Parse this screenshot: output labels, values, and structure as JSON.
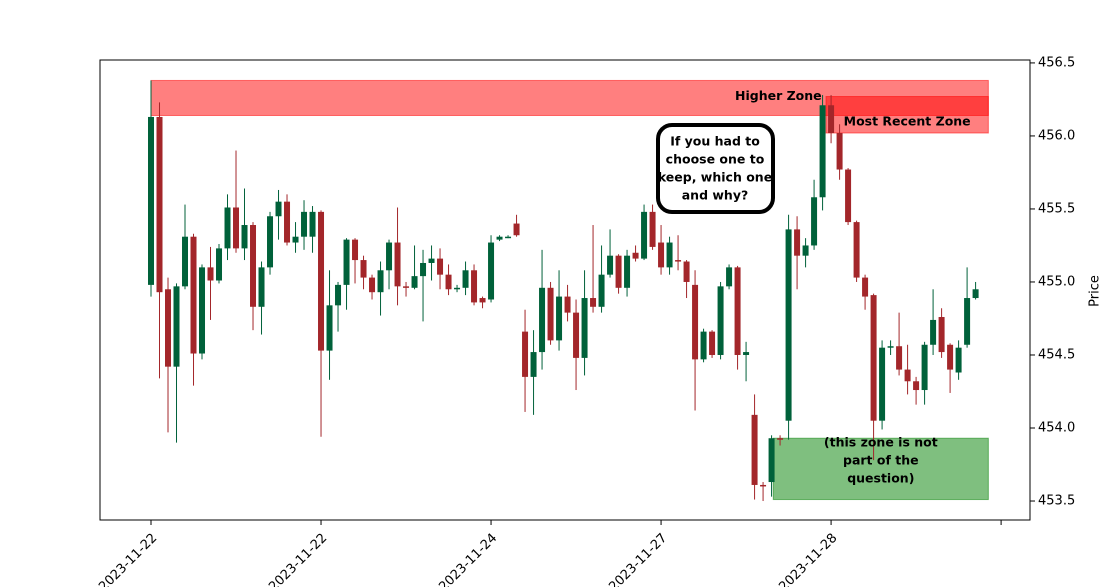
{
  "chart_data": {
    "type": "candlestick",
    "y_label": "Price",
    "xlim": [
      -6,
      103.4
    ],
    "xticks": [
      {
        "value": 0,
        "label": "2023-11-22"
      },
      {
        "value": 20,
        "label": "2023-11-22"
      },
      {
        "value": 40,
        "label": "2023-11-24"
      },
      {
        "value": 60,
        "label": "2023-11-27"
      },
      {
        "value": 80,
        "label": "2023-11-28"
      },
      {
        "value": 100,
        "label": null
      }
    ],
    "ylim": [
      453.37,
      456.52
    ],
    "yticks": [
      453.5,
      {
        "value": 454,
        "label": "454.0"
      },
      454.5,
      {
        "value": 455,
        "label": "455.0"
      },
      455.5,
      {
        "value": 456,
        "label": "456.0"
      },
      456.5
    ],
    "up_color": "#00613a",
    "down_color": "#a3262a",
    "open": [
      454.98,
      456.13,
      454.95,
      454.42,
      454.97,
      455.31,
      454.51,
      455.1,
      455.01,
      455.23,
      455.51,
      455.23,
      455.39,
      454.83,
      455.1,
      455.45,
      455.55,
      455.27,
      455.31,
      455.31,
      455.48,
      454.53,
      454.84,
      454.98,
      455.29,
      455.15,
      455.03,
      454.93,
      455.08,
      455.27,
      454.97,
      454.96,
      455.04,
      455.13,
      455.16,
      455.05,
      454.95,
      454.96,
      455.08,
      454.89,
      454.88,
      455.29,
      455.3,
      455.4,
      454.66,
      454.35,
      454.52,
      454.96,
      454.6,
      454.9,
      454.79,
      454.48,
      454.89,
      454.83,
      455.05,
      455.18,
      454.96,
      455.2,
      455.16,
      455.48,
      455.27,
      455.1,
      455.15,
      455.14,
      454.98,
      454.47,
      454.66,
      454.5,
      454.97,
      455.1,
      454.5,
      454.09,
      453.61,
      453.63,
      453.93,
      454.05,
      455.36,
      455.18,
      455.25,
      455.58,
      456.21,
      456.02,
      455.77,
      455.41,
      455.03,
      454.91,
      454.05,
      454.55,
      454.56,
      454.4,
      454.32,
      454.26,
      454.57,
      454.76,
      454.57,
      454.38,
      454.57,
      454.89
    ],
    "high": [
      456.38,
      456.23,
      455.03,
      454.99,
      455.53,
      455.33,
      455.12,
      455.24,
      455.26,
      455.6,
      455.9,
      455.64,
      455.41,
      455.14,
      455.48,
      455.63,
      455.6,
      455.41,
      455.56,
      455.52,
      455.49,
      455.08,
      455.0,
      455.3,
      455.3,
      455.18,
      455.05,
      455.14,
      455.29,
      455.51,
      455.0,
      455.25,
      455.22,
      455.25,
      455.23,
      455.12,
      454.98,
      455.14,
      455.12,
      454.9,
      455.32,
      455.32,
      455.32,
      455.46,
      454.81,
      454.67,
      455.22,
      455.0,
      455.08,
      454.98,
      454.88,
      455.08,
      455.39,
      455.25,
      455.36,
      455.19,
      455.22,
      455.25,
      455.53,
      455.53,
      455.39,
      455.31,
      455.32,
      455.15,
      455.08,
      454.68,
      454.67,
      455.0,
      455.12,
      455.11,
      454.59,
      454.23,
      453.63,
      453.95,
      453.95,
      455.46,
      455.45,
      455.3,
      455.7,
      456.28,
      456.28,
      456.08,
      455.78,
      455.42,
      455.05,
      454.92,
      454.6,
      454.6,
      454.79,
      454.57,
      454.35,
      454.59,
      454.95,
      454.82,
      454.58,
      454.6,
      455.1,
      455.0
    ],
    "low": [
      454.9,
      454.34,
      453.97,
      453.9,
      454.95,
      454.29,
      454.47,
      454.74,
      454.99,
      455.15,
      455.2,
      455.15,
      454.67,
      454.64,
      455.05,
      455.29,
      455.25,
      455.2,
      455.22,
      455.2,
      453.94,
      454.33,
      454.66,
      454.81,
      454.99,
      454.95,
      454.88,
      454.77,
      454.95,
      454.84,
      454.9,
      454.95,
      454.73,
      455.01,
      454.95,
      454.91,
      454.93,
      454.91,
      454.84,
      454.82,
      454.86,
      455.28,
      455.3,
      455.31,
      454.11,
      454.09,
      454.4,
      454.57,
      454.53,
      454.73,
      454.26,
      454.36,
      454.79,
      454.79,
      455.03,
      454.92,
      454.9,
      455.14,
      455.15,
      455.22,
      455.05,
      455.05,
      455.08,
      454.89,
      454.12,
      454.45,
      454.48,
      454.47,
      454.95,
      454.4,
      454.32,
      453.51,
      453.5,
      453.53,
      453.88,
      453.92,
      454.95,
      455.1,
      455.22,
      455.49,
      455.95,
      455.7,
      455.39,
      455.0,
      454.81,
      453.78,
      453.99,
      454.5,
      454.36,
      454.23,
      454.16,
      454.16,
      454.5,
      454.48,
      454.24,
      454.33,
      454.55,
      454.88
    ],
    "close": [
      456.13,
      454.93,
      454.42,
      454.97,
      455.31,
      454.51,
      455.1,
      455.01,
      455.23,
      455.51,
      455.23,
      455.39,
      454.83,
      455.1,
      455.45,
      455.55,
      455.27,
      455.31,
      455.48,
      455.48,
      454.53,
      454.84,
      454.98,
      455.29,
      455.15,
      455.03,
      454.93,
      455.08,
      455.27,
      454.97,
      454.96,
      455.04,
      455.13,
      455.16,
      455.05,
      454.95,
      454.96,
      455.08,
      454.86,
      454.86,
      455.27,
      455.31,
      455.31,
      455.32,
      454.35,
      454.52,
      454.96,
      454.6,
      454.9,
      454.79,
      454.48,
      454.89,
      454.83,
      455.05,
      455.18,
      454.96,
      455.18,
      455.16,
      455.48,
      455.24,
      455.1,
      455.27,
      455.14,
      455.0,
      454.47,
      454.66,
      454.5,
      454.97,
      455.1,
      454.5,
      454.52,
      453.61,
      453.6,
      453.93,
      453.92,
      455.36,
      455.18,
      455.25,
      455.58,
      456.21,
      456.02,
      455.77,
      455.41,
      455.03,
      454.9,
      454.05,
      454.55,
      454.56,
      454.4,
      454.32,
      454.26,
      454.57,
      454.74,
      454.52,
      454.4,
      454.55,
      454.89,
      454.95
    ],
    "zones": [
      {
        "lines": [
          "Higher Zone"
        ],
        "x": [
          0,
          98.5
        ],
        "y": [
          456.14,
          456.38
        ],
        "color": "#ff0000"
      },
      {
        "lines": [
          "Most Recent Zone"
        ],
        "x": [
          79.4,
          98.5
        ],
        "y": [
          456.02,
          456.27
        ],
        "color": "#ff0000"
      },
      {
        "lines": [
          "(this zone is not",
          "part of the",
          "question)"
        ],
        "x": [
          73.2,
          98.5
        ],
        "y": [
          453.51,
          453.93
        ],
        "color": "#008000"
      }
    ],
    "question": [
      "If you had to",
      "choose one to",
      "keep, which one",
      "and why?"
    ]
  }
}
